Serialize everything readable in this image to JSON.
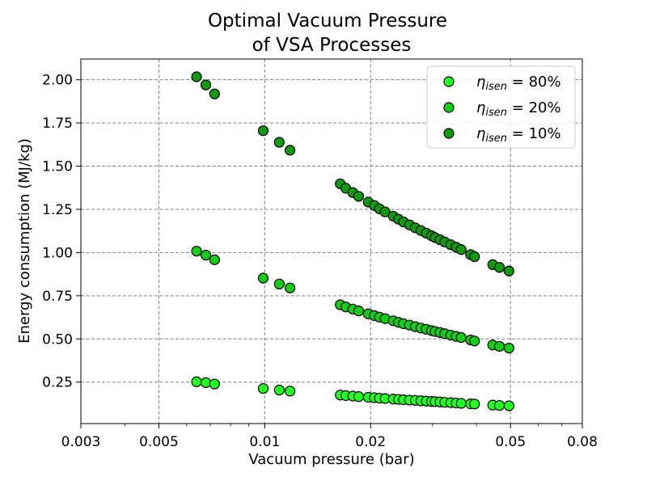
{
  "chart_data": {
    "type": "scatter",
    "title_lines": [
      "Optimal Vacuum Pressure",
      "of VSA Processes"
    ],
    "xlabel": "Vacuum pressure (bar)",
    "ylabel": "Energy consumption (MJ/kg)",
    "xscale": "log",
    "xlim": [
      0.003,
      0.08
    ],
    "ylim": [
      0.01,
      2.12
    ],
    "xticks": [
      0.003,
      0.005,
      0.01,
      0.02,
      0.05,
      0.08
    ],
    "xtick_labels": [
      "0.003",
      "0.005",
      "0.01",
      "0.02",
      "0.05",
      "0.08"
    ],
    "yticks": [
      0.25,
      0.5,
      0.75,
      1.0,
      1.25,
      1.5,
      1.75,
      2.0
    ],
    "ytick_labels": [
      "0.25",
      "0.50",
      "0.75",
      "1.00",
      "1.25",
      "1.50",
      "1.75",
      "2.00"
    ],
    "grid": true,
    "legend_position": "top-right",
    "series": [
      {
        "legend_symbol": "η",
        "legend_subscript": "isen",
        "legend_suffix": " = 80%",
        "color": "#22ff22",
        "points": [
          [
            0.0064,
            0.252
          ],
          [
            0.0068,
            0.247
          ],
          [
            0.0072,
            0.239
          ],
          [
            0.0099,
            0.213
          ],
          [
            0.011,
            0.204
          ],
          [
            0.0118,
            0.198
          ],
          [
            0.0164,
            0.175
          ],
          [
            0.017,
            0.172
          ],
          [
            0.0178,
            0.169
          ],
          [
            0.0185,
            0.166
          ],
          [
            0.0197,
            0.162
          ],
          [
            0.0205,
            0.16
          ],
          [
            0.0212,
            0.157
          ],
          [
            0.022,
            0.155
          ],
          [
            0.0232,
            0.152
          ],
          [
            0.024,
            0.15
          ],
          [
            0.0248,
            0.148
          ],
          [
            0.0258,
            0.146
          ],
          [
            0.0268,
            0.144
          ],
          [
            0.0278,
            0.142
          ],
          [
            0.0288,
            0.14
          ],
          [
            0.0298,
            0.138
          ],
          [
            0.0305,
            0.137
          ],
          [
            0.0315,
            0.135
          ],
          [
            0.0325,
            0.133
          ],
          [
            0.0338,
            0.131
          ],
          [
            0.035,
            0.129
          ],
          [
            0.0362,
            0.127
          ],
          [
            0.0385,
            0.124
          ],
          [
            0.0395,
            0.123
          ],
          [
            0.0445,
            0.117
          ],
          [
            0.0465,
            0.115
          ],
          [
            0.0495,
            0.113
          ]
        ]
      },
      {
        "legend_symbol": "η",
        "legend_subscript": "isen",
        "legend_suffix": " = 20%",
        "color": "#17cc17",
        "points": [
          [
            0.0064,
            1.008
          ],
          [
            0.0068,
            0.985
          ],
          [
            0.0072,
            0.958
          ],
          [
            0.0099,
            0.852
          ],
          [
            0.011,
            0.818
          ],
          [
            0.0118,
            0.795
          ],
          [
            0.0164,
            0.698
          ],
          [
            0.017,
            0.685
          ],
          [
            0.0178,
            0.673
          ],
          [
            0.0185,
            0.662
          ],
          [
            0.0197,
            0.645
          ],
          [
            0.0205,
            0.635
          ],
          [
            0.0212,
            0.626
          ],
          [
            0.022,
            0.617
          ],
          [
            0.0232,
            0.605
          ],
          [
            0.024,
            0.596
          ],
          [
            0.0248,
            0.588
          ],
          [
            0.0258,
            0.58
          ],
          [
            0.0268,
            0.571
          ],
          [
            0.0278,
            0.563
          ],
          [
            0.0288,
            0.556
          ],
          [
            0.0298,
            0.548
          ],
          [
            0.0305,
            0.543
          ],
          [
            0.0315,
            0.537
          ],
          [
            0.0325,
            0.53
          ],
          [
            0.0338,
            0.522
          ],
          [
            0.035,
            0.515
          ],
          [
            0.0362,
            0.508
          ],
          [
            0.0385,
            0.494
          ],
          [
            0.0395,
            0.488
          ],
          [
            0.0445,
            0.465
          ],
          [
            0.0465,
            0.457
          ],
          [
            0.0495,
            0.447
          ]
        ]
      },
      {
        "legend_symbol": "η",
        "legend_subscript": "isen",
        "legend_suffix": " = 10%",
        "color": "#119911",
        "points": [
          [
            0.0064,
            2.017
          ],
          [
            0.0068,
            1.97
          ],
          [
            0.0072,
            1.918
          ],
          [
            0.0099,
            1.705
          ],
          [
            0.011,
            1.638
          ],
          [
            0.0118,
            1.592
          ],
          [
            0.0164,
            1.398
          ],
          [
            0.017,
            1.372
          ],
          [
            0.0178,
            1.347
          ],
          [
            0.0185,
            1.325
          ],
          [
            0.0197,
            1.292
          ],
          [
            0.0205,
            1.272
          ],
          [
            0.0212,
            1.253
          ],
          [
            0.022,
            1.235
          ],
          [
            0.0232,
            1.21
          ],
          [
            0.024,
            1.193
          ],
          [
            0.0248,
            1.177
          ],
          [
            0.0258,
            1.16
          ],
          [
            0.0268,
            1.143
          ],
          [
            0.0278,
            1.127
          ],
          [
            0.0288,
            1.112
          ],
          [
            0.0298,
            1.097
          ],
          [
            0.0305,
            1.087
          ],
          [
            0.0315,
            1.074
          ],
          [
            0.0325,
            1.061
          ],
          [
            0.0338,
            1.045
          ],
          [
            0.035,
            1.031
          ],
          [
            0.0362,
            1.017
          ],
          [
            0.0385,
            0.988
          ],
          [
            0.0395,
            0.976
          ],
          [
            0.0445,
            0.93
          ],
          [
            0.0465,
            0.914
          ],
          [
            0.0495,
            0.893
          ]
        ]
      }
    ]
  }
}
